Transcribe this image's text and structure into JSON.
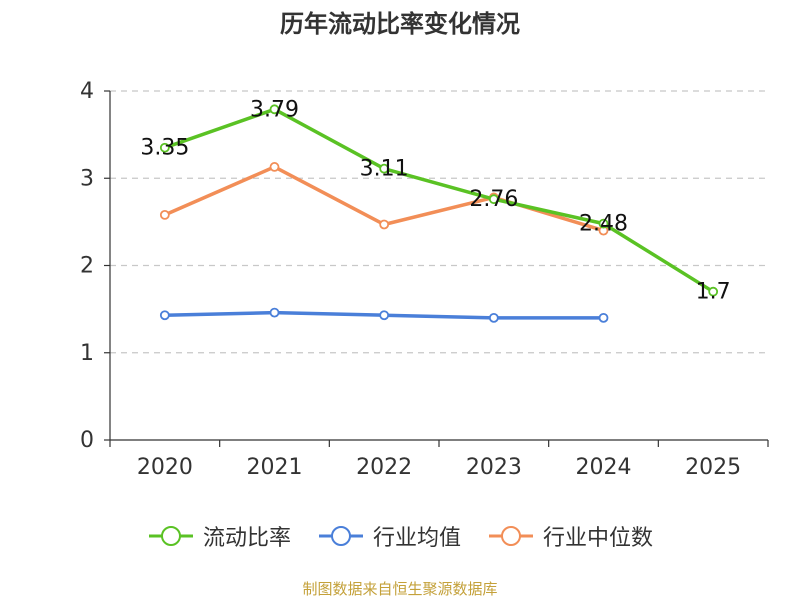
{
  "chart_data": {
    "type": "line",
    "title": "历年流动比率变化情况",
    "categories": [
      "2020",
      "2021",
      "2022",
      "2023",
      "2024",
      "2025"
    ],
    "ylim": [
      0,
      4
    ],
    "yticks": [
      0,
      1,
      2,
      3,
      4
    ],
    "grid": true,
    "series": [
      {
        "name": "流动比率",
        "color": "#5ac224",
        "values": [
          3.35,
          3.79,
          3.11,
          2.76,
          2.48,
          1.7
        ],
        "labels": [
          "3.35",
          "3.79",
          "3.11",
          "2.76",
          "2.48",
          "1.7"
        ]
      },
      {
        "name": "行业均值",
        "color": "#4a7fd9",
        "values": [
          1.43,
          1.46,
          1.43,
          1.4,
          1.4,
          null
        ]
      },
      {
        "name": "行业中位数",
        "color": "#f28e57",
        "values": [
          2.58,
          3.13,
          2.47,
          2.78,
          2.4,
          null
        ]
      }
    ],
    "legend_position": "bottom"
  },
  "source": "制图数据来自恒生聚源数据库"
}
